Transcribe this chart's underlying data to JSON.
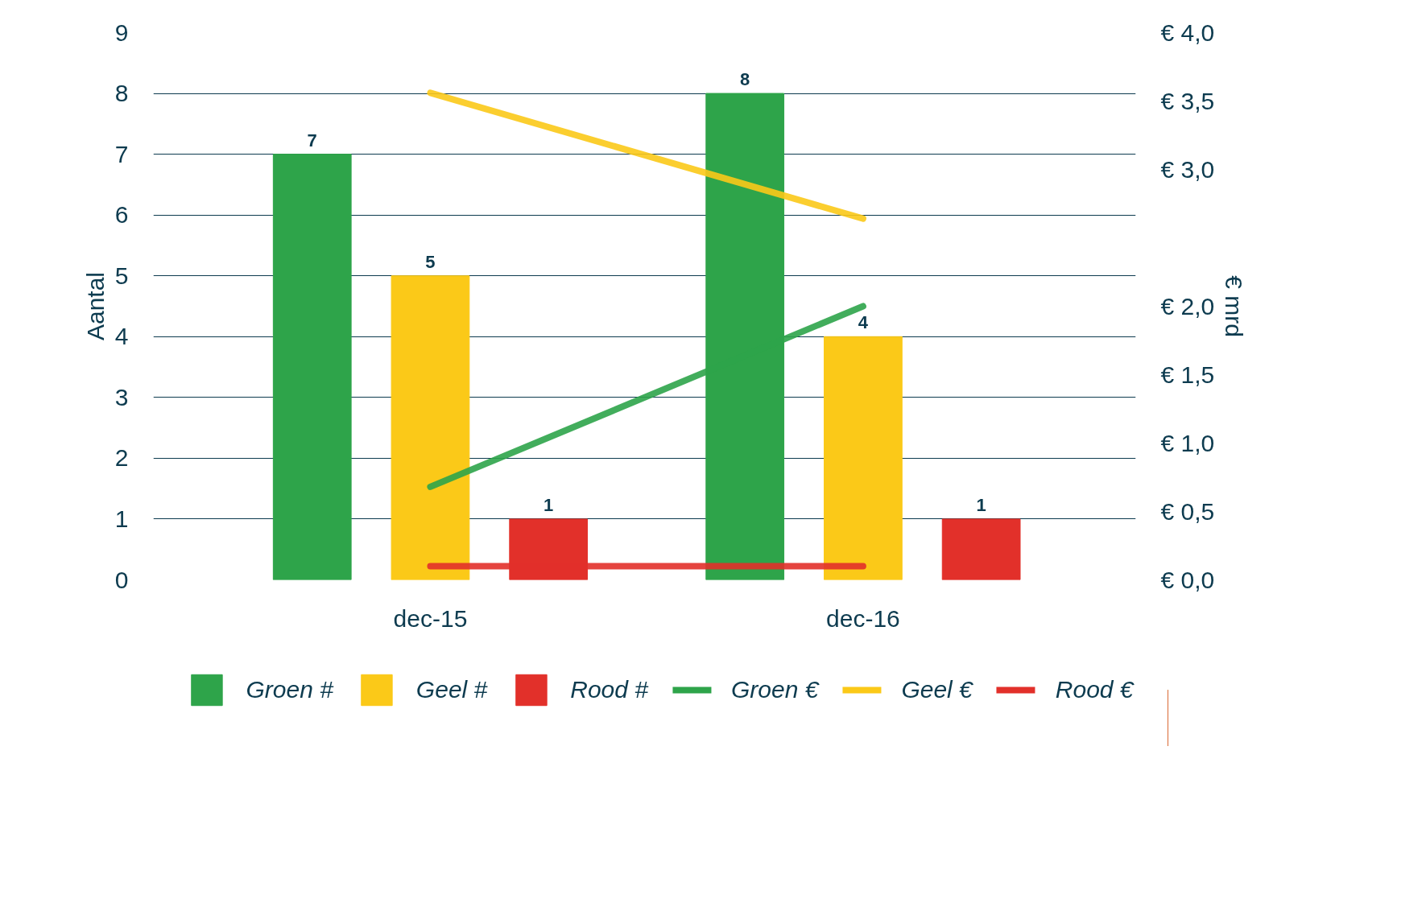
{
  "chart_data": {
    "type": "bar",
    "categories": [
      "dec-15",
      "dec-16"
    ],
    "ylabel": "Aantal",
    "y2label": "€ mrd",
    "ylim": [
      0,
      9
    ],
    "yticks": [
      0,
      1,
      2,
      3,
      4,
      5,
      6,
      7,
      8,
      9
    ],
    "y2lim": [
      0,
      4.0
    ],
    "y2ticks": [
      {
        "value": 0,
        "label": "€ 0,0"
      },
      {
        "value": 0.5,
        "label": "€ 0,5"
      },
      {
        "value": 1.0,
        "label": "€ 1,0"
      },
      {
        "value": 1.5,
        "label": "€ 1,5"
      },
      {
        "value": 2.0,
        "label": "€ 2,0"
      },
      {
        "value": 3.0,
        "label": "€ 3,0"
      },
      {
        "value": 3.5,
        "label": "€ 3,5"
      },
      {
        "value": 4.0,
        "label": "€ 4,0"
      }
    ],
    "series": [
      {
        "name": "Groen #",
        "color": "#2ea44a",
        "values": [
          7,
          8
        ],
        "value_labels": [
          "7",
          "8"
        ]
      },
      {
        "name": "Geel #",
        "color": "#fbc918",
        "values": [
          5,
          4
        ],
        "value_labels": [
          "5",
          "4"
        ]
      },
      {
        "name": "Rood #",
        "color": "#e2302a",
        "values": [
          1,
          1
        ],
        "value_labels": [
          "1",
          "1"
        ]
      },
      {
        "name": "Groen €",
        "type": "line",
        "axis": "y2",
        "color": "#2ea44a",
        "values": [
          0.68,
          2.0
        ]
      },
      {
        "name": "Geel €",
        "type": "line",
        "axis": "y2",
        "color": "#fbc918",
        "values": [
          3.56,
          2.64
        ]
      },
      {
        "name": "Rood €",
        "type": "line",
        "axis": "y2",
        "color": "#e2302a",
        "values": [
          0.1,
          0.1
        ]
      }
    ],
    "grid": "y",
    "legend": "bottom",
    "marker": "none",
    "line_style": "solid"
  }
}
